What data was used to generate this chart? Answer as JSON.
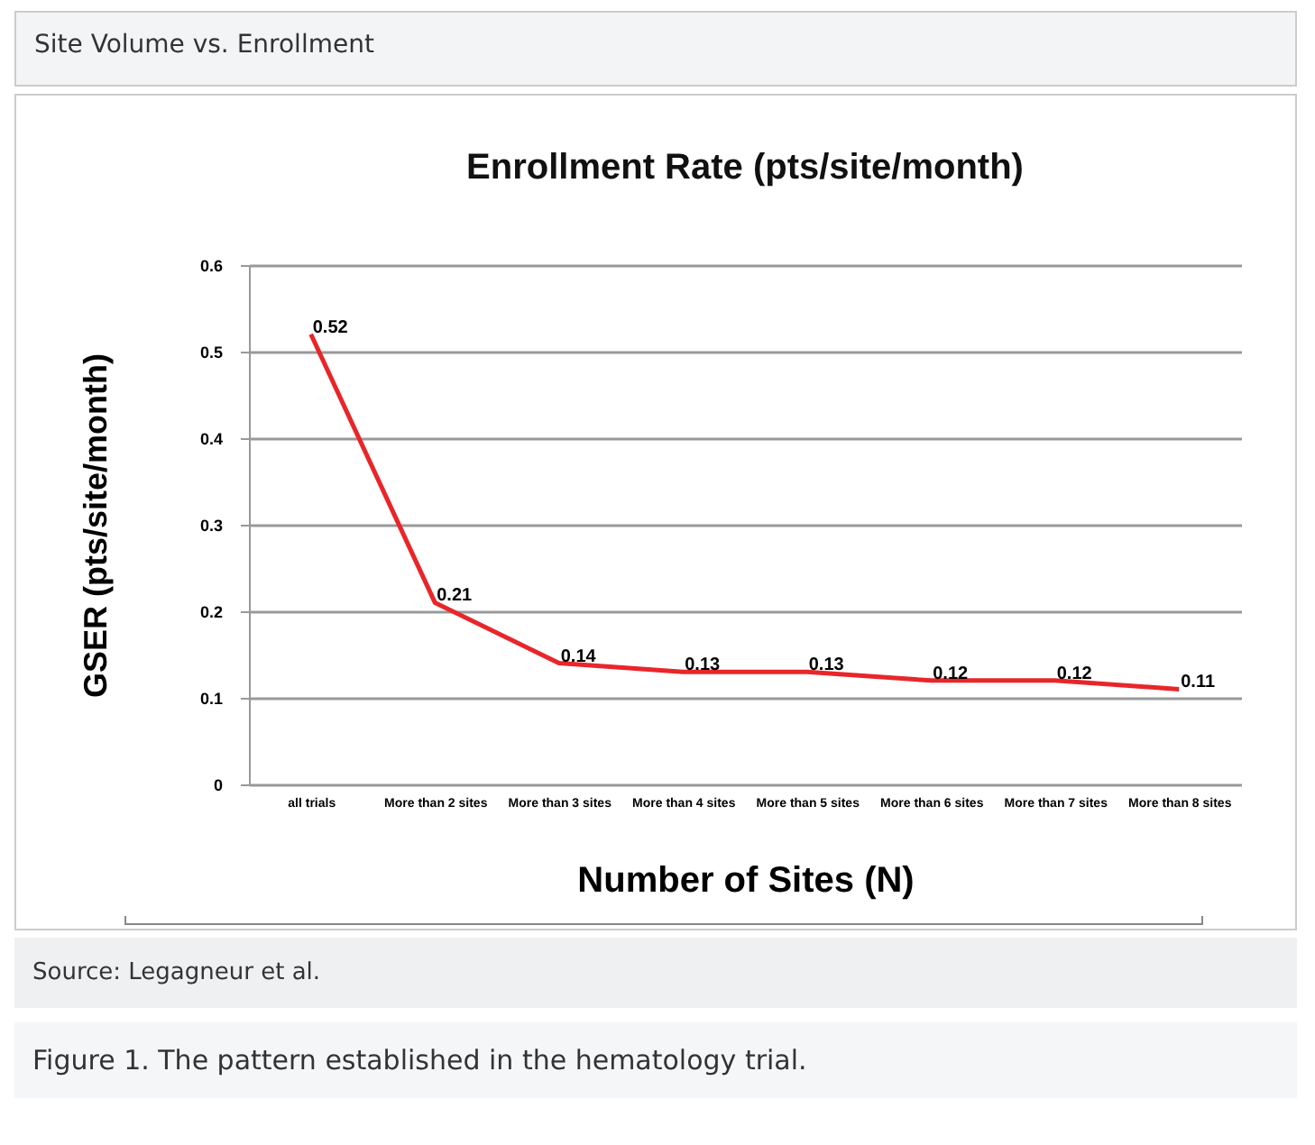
{
  "chart_data": {
    "type": "line",
    "title": "Enrollment Rate (pts/site/month)",
    "xlabel": "Number of Sites (N)",
    "ylabel": "GSER (pts/site/month)",
    "annotations": [
      "Site Volume vs. Enrollment",
      "Source: Legagneur et al.",
      "Figure 1. The pattern established in the hematology trial."
    ],
    "categories": [
      "all trials",
      "More than 2 sites",
      "More than 3 sites",
      "More than 4 sites",
      "More than 5 sites",
      "More than 6 sites",
      "More than 7 sites",
      "More than 8 sites"
    ],
    "series": [
      {
        "color": "#e8262a",
        "values": [
          0.52,
          0.21,
          0.14,
          0.13,
          0.13,
          0.12,
          0.12,
          0.11
        ]
      }
    ],
    "ylim": [
      0,
      0.6
    ],
    "yticks": [
      0,
      0.1,
      0.2,
      0.3,
      0.4,
      0.5,
      0.6
    ],
    "grid": "y",
    "data_labels": true,
    "marker": "none",
    "line_style": "solid"
  }
}
